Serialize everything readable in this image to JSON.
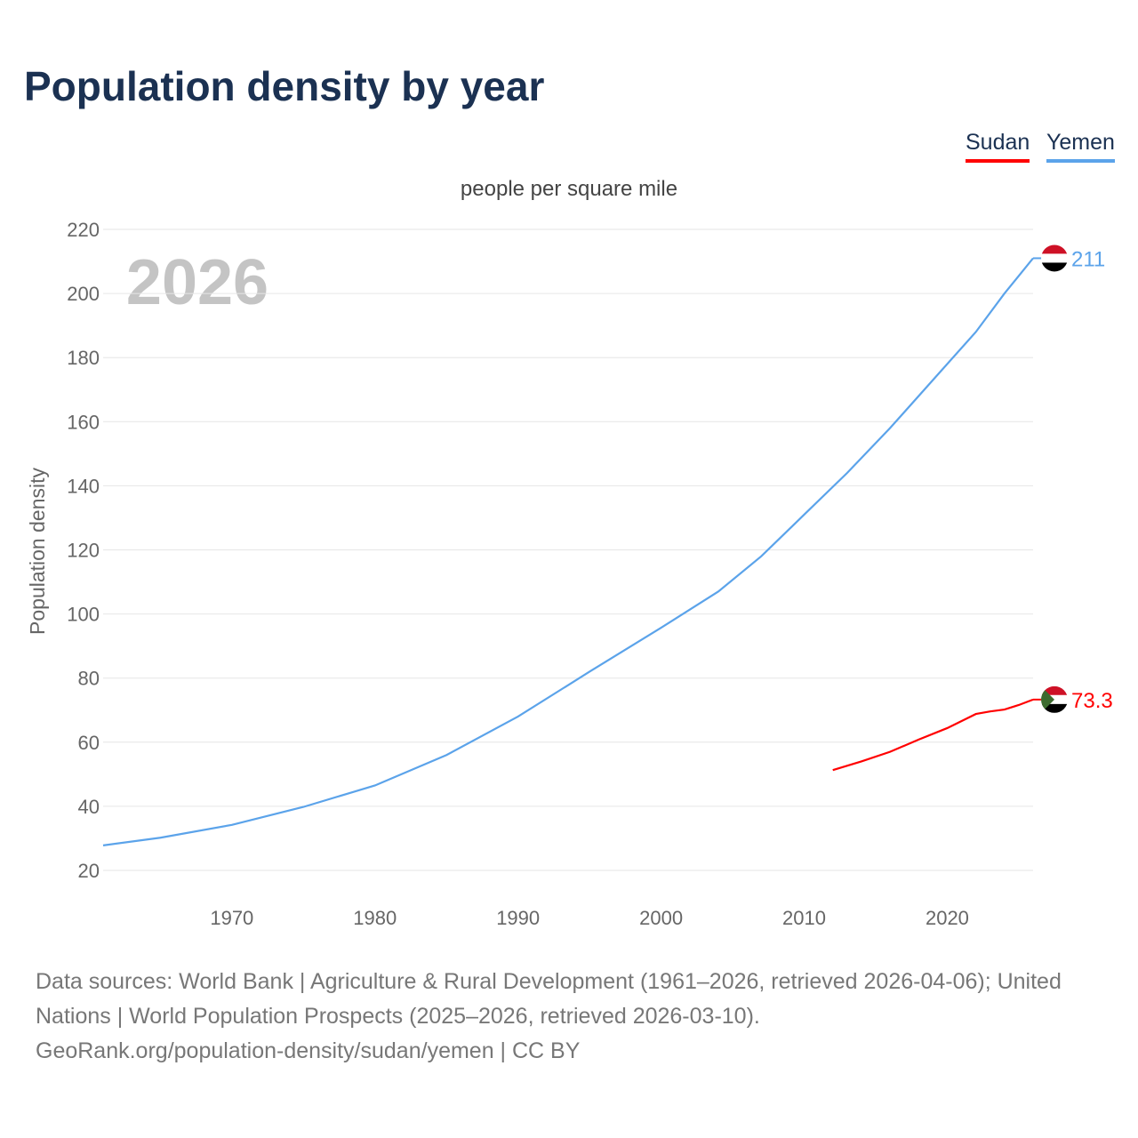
{
  "chart_data": {
    "type": "line",
    "title": "Population density by year",
    "subtitle": "people per square mile",
    "ylabel": "Population density",
    "xlabel": "",
    "year_watermark": "2026",
    "ylim": [
      20,
      220
    ],
    "xlim": [
      1961,
      2026
    ],
    "yticks": [
      20,
      40,
      60,
      80,
      100,
      120,
      140,
      160,
      180,
      200,
      220
    ],
    "xticks": [
      1970,
      1980,
      1990,
      2000,
      2010,
      2020
    ],
    "grid": true,
    "legend_placement": "top-right",
    "series": [
      {
        "name": "Sudan",
        "color": "#ff0000",
        "end_label": "73.3",
        "x": [
          2012,
          2014,
          2016,
          2018,
          2020,
          2022,
          2023,
          2024,
          2025,
          2026
        ],
        "y": [
          51.3,
          54,
          57,
          60.8,
          64.4,
          68.8,
          69.6,
          70.2,
          71.6,
          73.3
        ]
      },
      {
        "name": "Yemen",
        "color": "#5ba3ea",
        "end_label": "211",
        "x": [
          1961,
          1965,
          1970,
          1975,
          1980,
          1985,
          1990,
          1995,
          2000,
          2004,
          2007,
          2010,
          2013,
          2016,
          2020,
          2022,
          2024,
          2026
        ],
        "y": [
          27.8,
          30.2,
          34.2,
          39.8,
          46.5,
          56,
          68,
          82,
          95.7,
          107,
          118,
          131,
          144,
          158,
          178,
          188,
          200,
          211
        ]
      }
    ]
  },
  "source": {
    "line1": "Data sources: World Bank | Agriculture & Rural Development (1961–2026, retrieved 2026-04-06); United Nations | World Population Prospects (2025–2026, retrieved 2026-03-10).",
    "line2": "GeoRank.org/population-density/sudan/yemen | CC BY"
  }
}
